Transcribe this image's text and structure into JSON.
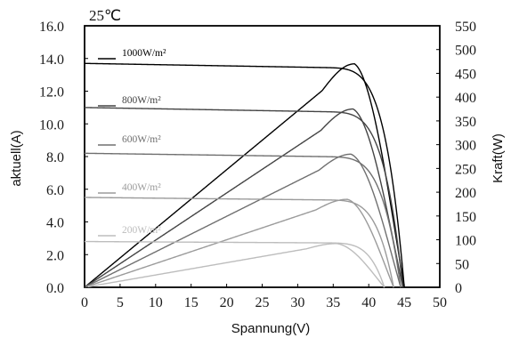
{
  "chart_data": {
    "type": "line",
    "annotation": "25℃",
    "xlabel": "Spannung(V)",
    "ylabel_left": "aktuell(A)",
    "ylabel_right": "Kraft(W)",
    "xlim": [
      0,
      50
    ],
    "ylim_left": [
      0,
      16
    ],
    "ylim_right": [
      0,
      550
    ],
    "x_ticks": [
      "0",
      "5",
      "10",
      "15",
      "20",
      "25",
      "30",
      "35",
      "40",
      "45",
      "50"
    ],
    "y_ticks_left": [
      "0.0",
      "2.0",
      "4.0",
      "6.0",
      "8.0",
      "10.0",
      "12.0",
      "14.0",
      "16.0"
    ],
    "y_ticks_right": [
      "0",
      "50",
      "100",
      "150",
      "200",
      "250",
      "300",
      "350",
      "400",
      "450",
      "500",
      "550"
    ],
    "grid": false,
    "legend_position": "left",
    "series": [
      {
        "name": "1000W/m²",
        "color": "#000000",
        "current_curve": {
          "isc": 13.7,
          "i_at_33": 13.45,
          "knee_v": 38.0,
          "voc": 45.0
        },
        "power_curve": {
          "peak_v": 38.0,
          "peak_w": 470
        }
      },
      {
        "name": "800W/m²",
        "color": "#444444",
        "current_curve": {
          "isc": 11.0,
          "i_at_33": 10.75,
          "knee_v": 37.8,
          "voc": 44.8
        },
        "power_curve": {
          "peak_v": 37.8,
          "peak_w": 375
        }
      },
      {
        "name": "600W/m²",
        "color": "#707070",
        "current_curve": {
          "isc": 8.2,
          "i_at_33": 8.0,
          "knee_v": 37.5,
          "voc": 44.5
        },
        "power_curve": {
          "peak_v": 37.5,
          "peak_w": 280
        }
      },
      {
        "name": "400W/m²",
        "color": "#9b9b9b",
        "current_curve": {
          "isc": 5.5,
          "i_at_33": 5.35,
          "knee_v": 37.0,
          "voc": 43.5
        },
        "power_curve": {
          "peak_v": 37.0,
          "peak_w": 185
        }
      },
      {
        "name": "200W/m²",
        "color": "#bdbdbd",
        "current_curve": {
          "isc": 2.8,
          "i_at_33": 2.72,
          "knee_v": 35.5,
          "voc": 42.2
        },
        "power_curve": {
          "peak_v": 35.5,
          "peak_w": 92
        }
      }
    ]
  }
}
